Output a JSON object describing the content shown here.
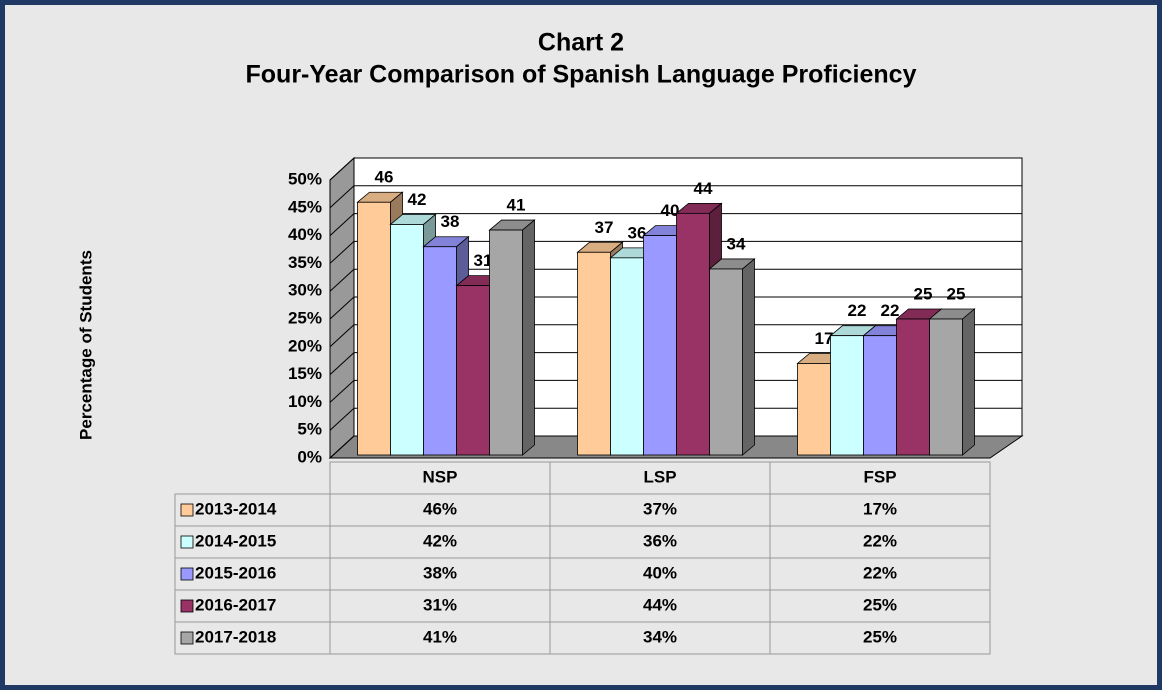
{
  "chart_data": {
    "type": "bar3d",
    "title": "Chart 2",
    "subtitle": "Four-Year Comparison of Spanish Language Proficiency",
    "y_label": "Percentage of Students",
    "categories": [
      "NSP",
      "LSP",
      "FSP"
    ],
    "series": [
      {
        "name": "2013-2014",
        "color": "#FFCC99",
        "values": [
          46,
          37,
          17
        ],
        "value_labels": [
          "46%",
          "37%",
          "17%"
        ]
      },
      {
        "name": "2014-2015",
        "color": "#CCFFFF",
        "values": [
          42,
          36,
          22
        ],
        "value_labels": [
          "42%",
          "36%",
          "22%"
        ]
      },
      {
        "name": "2015-2016",
        "color": "#9999FF",
        "values": [
          38,
          40,
          22
        ],
        "value_labels": [
          "38%",
          "40%",
          "22%"
        ]
      },
      {
        "name": "2016-2017",
        "color": "#993366",
        "values": [
          31,
          44,
          25
        ],
        "value_labels": [
          "31%",
          "44%",
          "25%"
        ]
      },
      {
        "name": "2017-2018",
        "color": "#A6A6A6",
        "values": [
          41,
          34,
          25
        ],
        "value_labels": [
          "41%",
          "34%",
          "25%"
        ]
      }
    ],
    "ylim": [
      0,
      50
    ],
    "yticks": [
      {
        "value": 0,
        "label": "0%"
      },
      {
        "value": 5,
        "label": "5%"
      },
      {
        "value": 10,
        "label": "10%"
      },
      {
        "value": 15,
        "label": "15%"
      },
      {
        "value": 20,
        "label": "20%"
      },
      {
        "value": 25,
        "label": "25%"
      },
      {
        "value": 30,
        "label": "30%"
      },
      {
        "value": 35,
        "label": "35%"
      },
      {
        "value": 40,
        "label": "40%"
      },
      {
        "value": 45,
        "label": "45%"
      },
      {
        "value": 50,
        "label": "50%"
      }
    ],
    "grid": true
  }
}
